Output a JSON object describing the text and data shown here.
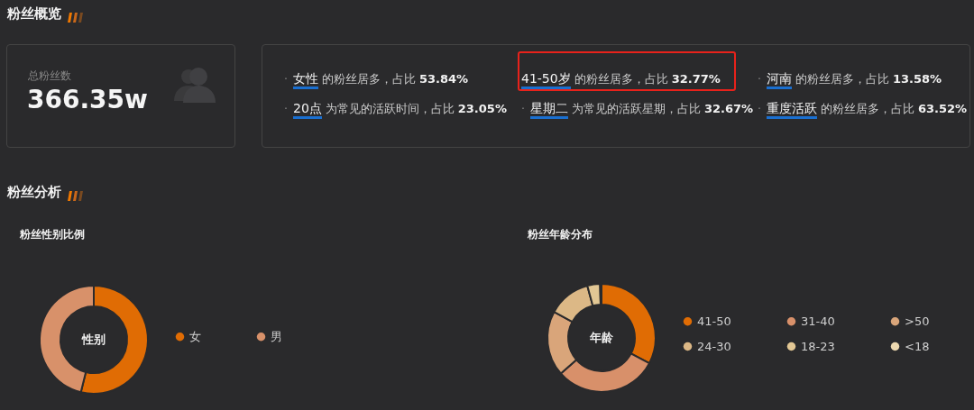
{
  "chart_data": [
    {
      "type": "other",
      "title": "粉丝概览",
      "annotations": [
        "总粉丝数",
        "366.35w",
        "· 女性 的粉丝居多，占比 53.84%",
        "41-50岁 的粉丝居多，占比 32.77%",
        "· 河南 的粉丝居多，占比 13.58%",
        "· 20点 为常见的活跃时间，占比 23.05%",
        "· 星期二 为常见的活跃星期，占比 32.67%",
        "· 重度活跃 的粉丝居多，占比 63.52%",
        "粉丝分析"
      ]
    },
    {
      "type": "donut",
      "title": "粉丝性别比例",
      "annotations": [
        "性别"
      ],
      "categories": [
        "女",
        "男"
      ],
      "values": [
        53.84,
        46.16
      ],
      "colors": [
        "#e06c04",
        "#d8916a"
      ],
      "legend": "right"
    },
    {
      "type": "donut",
      "title": "粉丝年龄分布",
      "annotations": [
        "年龄"
      ],
      "categories": [
        "41-50",
        "31-40",
        ">50",
        "24-30",
        "18-23",
        "<18"
      ],
      "values": [
        32.77,
        30.8,
        19.4,
        12.8,
        3.8,
        0.43
      ],
      "colors": [
        "#e06c04",
        "#d8906a",
        "#d9a57a",
        "#dcb886",
        "#e2c794",
        "#ecd8b0"
      ],
      "legend": "right"
    }
  ]
}
